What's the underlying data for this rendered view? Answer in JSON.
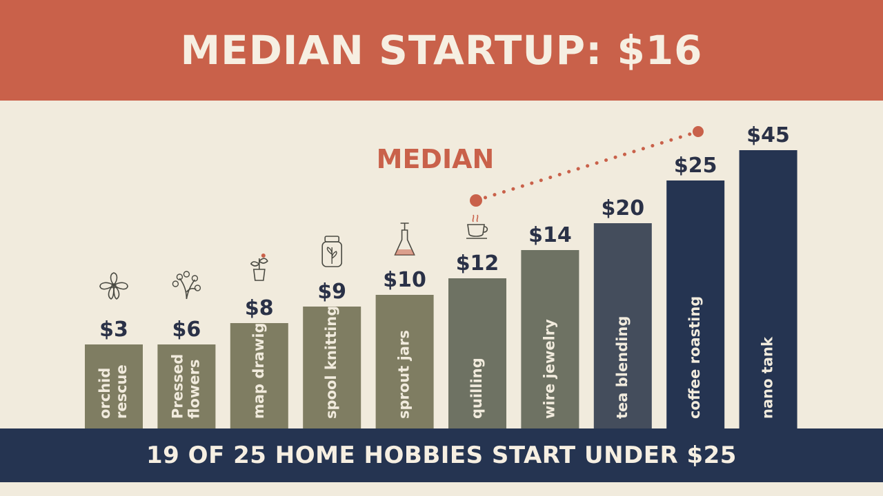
{
  "header": {
    "title": "MEDIAN STARTUP: $16"
  },
  "footer": {
    "text": "19 OF 25 HOME HOBBIES START UNDER $25"
  },
  "colors": {
    "header_bg": "#c9614a",
    "footer_bg": "#253451",
    "background": "#f1ebdd",
    "bar_low": "#7f7d62",
    "bar_mid": "#6e7263",
    "bar_high": "#253451",
    "accent": "#c9614a",
    "value_text": "#2a3147",
    "bar_text": "#f1ebdd"
  },
  "chart_data": {
    "type": "bar",
    "categories": [
      [
        "orchid",
        "rescue"
      ],
      [
        "Pressed",
        "flowers"
      ],
      [
        "map drawig"
      ],
      [
        "spool knitting"
      ],
      [
        "sprout jars"
      ],
      [
        "quilling"
      ],
      [
        "wire jewelry"
      ],
      [
        "tea blending"
      ],
      [
        "coffee roasting"
      ],
      [
        "nano tank"
      ]
    ],
    "values": [
      3,
      6,
      8,
      9,
      10,
      12,
      14,
      20,
      25,
      45
    ],
    "value_labels": [
      "$3",
      "$6",
      "$8",
      "$9",
      "$10",
      "$12",
      "$14",
      "$20",
      "$25",
      "$45"
    ],
    "icons": [
      "orchid-icon",
      "pressed-flowers-icon",
      "potted-plant-icon",
      "jar-icon",
      "flask-icon",
      "coffee-cup-icon",
      null,
      null,
      null,
      null
    ],
    "annotation": {
      "label": "MEDIAN",
      "line": "dotted"
    },
    "scale": "nonlinear",
    "grid": false,
    "legend": "none"
  }
}
